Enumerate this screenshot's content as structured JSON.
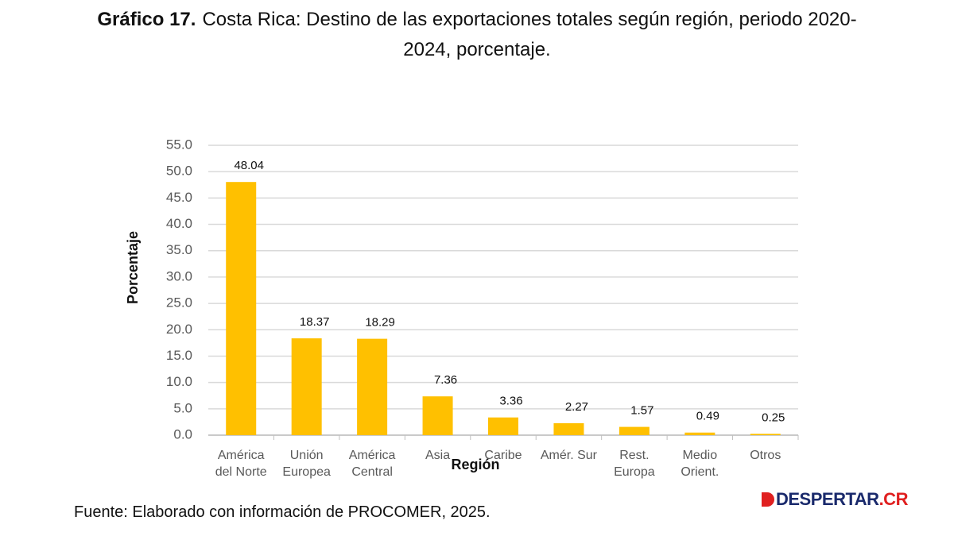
{
  "chart_data": {
    "type": "bar",
    "title_label": "Gráfico 17.",
    "title": "Costa Rica: Destino de las exportaciones totales según región, periodo 2020-2024, porcentaje.",
    "categories": [
      "América\ndel Norte",
      "Unión\nEuropea",
      "América\nCentral",
      "Asia",
      "Caribe",
      "Amér. Sur",
      "Rest.\nEuropa",
      "Medio\nOrient.",
      "Otros"
    ],
    "values": [
      48.04,
      18.37,
      18.29,
      7.36,
      3.36,
      2.27,
      1.57,
      0.49,
      0.25
    ],
    "color": "#ffc000",
    "ylim": [
      0,
      55
    ],
    "yticks": [
      {
        "value": 0,
        "label": "0.0"
      },
      {
        "value": 5,
        "label": "5.0"
      },
      {
        "value": 10,
        "label": "10.0"
      },
      {
        "value": 15,
        "label": "15.0"
      },
      {
        "value": 20,
        "label": "20.0"
      },
      {
        "value": 25,
        "label": "25.0"
      },
      {
        "value": 30,
        "label": "30.0"
      },
      {
        "value": 35,
        "label": "35.0"
      },
      {
        "value": 40,
        "label": "40.0"
      },
      {
        "value": 45,
        "label": "45.0"
      },
      {
        "value": 50,
        "label": "50.0"
      },
      {
        "value": 55,
        "label": "55.0"
      }
    ],
    "grid": true,
    "y_label": "Porcentaje",
    "x_label": "Región",
    "source": "Fuente: Elaborado con información de PROCOMER, 2025."
  },
  "logo": {
    "text": "DESPERTAR",
    "suffix": ".CR"
  }
}
